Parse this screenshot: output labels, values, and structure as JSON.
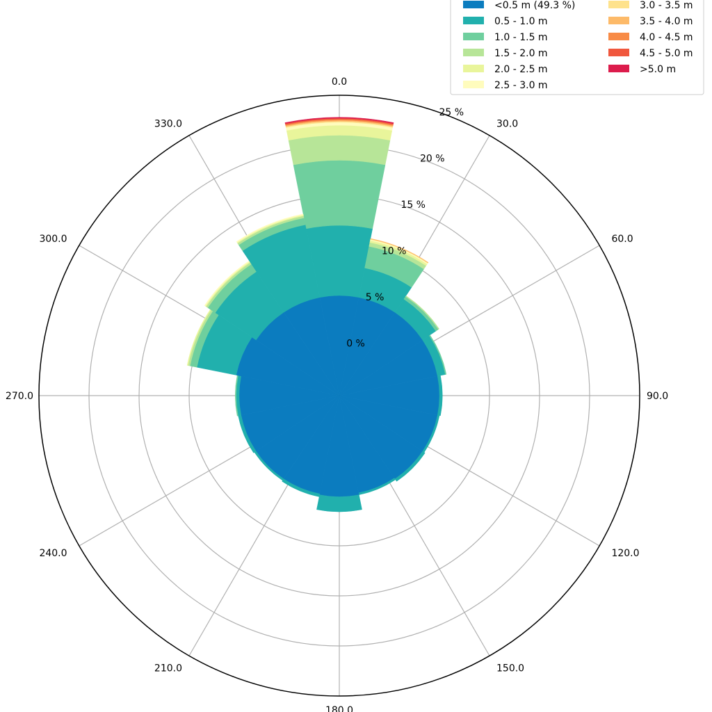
{
  "chart_data": {
    "type": "windrose",
    "title": "",
    "angle_ticks": [
      "0.0",
      "30.0",
      "60.0",
      "90.0",
      "120.0",
      "150.0",
      "180.0",
      "210.0",
      "240.0",
      "270.0",
      "300.0",
      "330.0"
    ],
    "radial_ticks": [
      "0 %",
      "5 %",
      "10 %",
      "15 %",
      "20 %",
      "25 %"
    ],
    "radial_offset_percent": -5,
    "rlim": [
      -5,
      25
    ],
    "sector_width_deg": 22.5,
    "sector_directions_deg": [
      0,
      22.5,
      45,
      67.5,
      90,
      112.5,
      135,
      157.5,
      180,
      202.5,
      225,
      247.5,
      270,
      292.5,
      315,
      337.5
    ],
    "bins": [
      {
        "name": "<0.5 m (49.3 %)",
        "color": "#0b7cbf"
      },
      {
        "name": "0.5 - 1.0 m",
        "color": "#21b0ad"
      },
      {
        "name": "1.0 - 1.5 m",
        "color": "#6fcf9e"
      },
      {
        "name": "1.5 - 2.0 m",
        "color": "#b7e598"
      },
      {
        "name": "2.0 - 2.5 m",
        "color": "#e9f59b"
      },
      {
        "name": "2.5 - 3.0 m",
        "color": "#fffcbd"
      },
      {
        "name": "3.0 - 3.5 m",
        "color": "#fee28c"
      },
      {
        "name": "3.5 - 4.0 m",
        "color": "#fdba69"
      },
      {
        "name": "4.0 - 4.5 m",
        "color": "#f88b46"
      },
      {
        "name": "4.5 - 5.0 m",
        "color": "#f0573d"
      },
      {
        "name": ">5.0 m",
        "color": "#dc1c4c"
      }
    ],
    "cumulative_percent": [
      [
        5,
        12,
        18.5,
        21,
        22,
        22.3,
        22.4,
        22.5,
        22.6,
        22.7,
        22.8
      ],
      [
        5,
        8,
        10.2,
        10.6,
        10.8,
        10.9,
        10.95,
        11,
        11,
        11,
        11
      ],
      [
        5,
        6.6,
        6.9,
        7,
        7,
        7,
        7,
        7,
        7,
        7,
        7
      ],
      [
        5,
        5.8,
        5.9,
        5.9,
        5.9,
        5.9,
        5.9,
        5.9,
        5.9,
        5.9,
        5.9
      ],
      [
        5,
        5.3,
        5.3,
        5.3,
        5.3,
        5.3,
        5.3,
        5.3,
        5.3,
        5.3,
        5.3
      ],
      [
        5,
        5.2,
        5.2,
        5.2,
        5.2,
        5.2,
        5.2,
        5.2,
        5.2,
        5.2,
        5.2
      ],
      [
        5,
        5.3,
        5.3,
        5.3,
        5.3,
        5.3,
        5.3,
        5.3,
        5.3,
        5.3,
        5.3
      ],
      [
        4.9,
        5.1,
        5.1,
        5.1,
        5.1,
        5.1,
        5.1,
        5.1,
        5.1,
        5.1,
        5.1
      ],
      [
        5.1,
        6.6,
        6.6,
        6.6,
        6.6,
        6.6,
        6.6,
        6.6,
        6.6,
        6.6,
        6.6
      ],
      [
        5,
        5.3,
        5.3,
        5.3,
        5.3,
        5.3,
        5.3,
        5.3,
        5.3,
        5.3,
        5.3
      ],
      [
        5,
        5.2,
        5.2,
        5.2,
        5.2,
        5.2,
        5.2,
        5.2,
        5.2,
        5.2,
        5.2
      ],
      [
        5,
        5.3,
        5.3,
        5.3,
        5.3,
        5.3,
        5.3,
        5.3,
        5.3,
        5.3,
        5.3
      ],
      [
        5,
        5.3,
        5.4,
        5.4,
        5.4,
        5.4,
        5.4,
        5.4,
        5.4,
        5.4,
        5.4
      ],
      [
        5.5,
        9.5,
        10.2,
        10.4,
        10.5,
        10.5,
        10.5,
        10.5,
        10.5,
        10.5,
        10.5
      ],
      [
        5,
        9.9,
        10.8,
        11,
        11.1,
        11.2,
        11.2,
        11.2,
        11.2,
        11.2,
        11.2
      ],
      [
        5,
        12.4,
        13.1,
        13.3,
        13.4,
        13.5,
        13.5,
        13.5,
        13.5,
        13.5,
        13.5
      ]
    ],
    "grid": true,
    "legend_position": "top-right"
  }
}
